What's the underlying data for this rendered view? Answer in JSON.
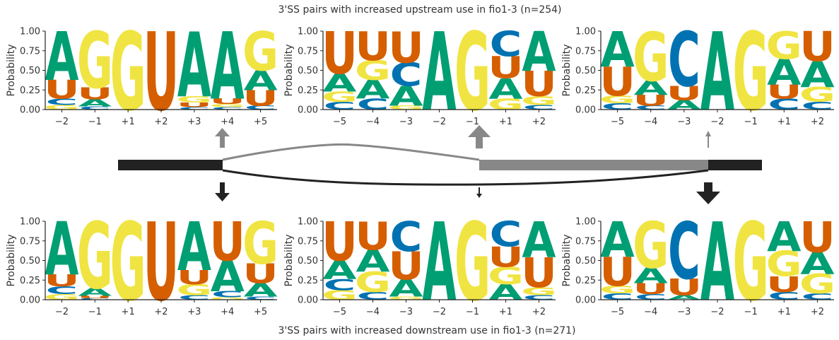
{
  "colors": {
    "A": "#009e73",
    "C": "#0072b2",
    "G": "#f0e442",
    "U": "#d55e00"
  },
  "figure": {
    "top_title": "3'SS pairs with increased upstream use in fio1-3 (n=254)",
    "bottom_title": "3'SS pairs with increased downstream use in fio1-3 (n=271)"
  },
  "chart_data": [
    {
      "type": "sequence-logo",
      "id": "top-5ss",
      "row": "upstream",
      "ylabel": "Probability",
      "ylim": [
        0,
        1
      ],
      "yticks": [
        "0.00",
        "0.25",
        "0.50",
        "0.75",
        "1.00"
      ],
      "positions": [
        "−2",
        "−1",
        "+1",
        "+2",
        "+3",
        "+4",
        "+5"
      ],
      "probabilities": [
        {
          "A": 0.62,
          "C": 0.08,
          "G": 0.06,
          "U": 0.24
        },
        {
          "A": 0.09,
          "C": 0.04,
          "G": 0.72,
          "U": 0.15
        },
        {
          "A": 0.0,
          "C": 0.0,
          "G": 1.0,
          "U": 0.0
        },
        {
          "A": 0.0,
          "C": 0.0,
          "G": 0.0,
          "U": 1.0
        },
        {
          "A": 0.83,
          "C": 0.03,
          "G": 0.08,
          "U": 0.06
        },
        {
          "A": 0.86,
          "C": 0.03,
          "G": 0.04,
          "U": 0.07
        },
        {
          "A": 0.25,
          "C": 0.05,
          "G": 0.5,
          "U": 0.2
        }
      ]
    },
    {
      "type": "sequence-logo",
      "id": "top-bp",
      "row": "upstream",
      "ylabel": "Probability",
      "ylim": [
        0,
        1
      ],
      "yticks": [
        "0.00",
        "0.25",
        "0.50",
        "0.75",
        "1.00"
      ],
      "positions": [
        "−5",
        "−4",
        "−3",
        "−2",
        "−1",
        "+1",
        "+2"
      ],
      "probabilities": [
        {
          "A": 0.23,
          "C": 0.1,
          "G": 0.13,
          "U": 0.54
        },
        {
          "A": 0.24,
          "C": 0.14,
          "G": 0.25,
          "U": 0.37
        },
        {
          "A": 0.25,
          "C": 0.3,
          "G": 0.05,
          "U": 0.4
        },
        {
          "A": 1.0,
          "C": 0.0,
          "G": 0.0,
          "U": 0.0
        },
        {
          "A": 0.0,
          "C": 0.0,
          "G": 1.0,
          "U": 0.0
        },
        {
          "A": 0.26,
          "C": 0.32,
          "G": 0.14,
          "U": 0.28
        },
        {
          "A": 0.51,
          "C": 0.06,
          "G": 0.11,
          "U": 0.32
        }
      ]
    },
    {
      "type": "sequence-logo",
      "id": "top-3ss",
      "row": "upstream",
      "ylabel": "Probability",
      "ylim": [
        0,
        1
      ],
      "yticks": [
        "0.00",
        "0.25",
        "0.50",
        "0.75",
        "1.00"
      ],
      "positions": [
        "−5",
        "−4",
        "−3",
        "−2",
        "−1",
        "+1",
        "+2"
      ],
      "probabilities": [
        {
          "A": 0.45,
          "C": 0.08,
          "G": 0.1,
          "U": 0.37
        },
        {
          "A": 0.18,
          "C": 0.05,
          "G": 0.63,
          "U": 0.14
        },
        {
          "A": 0.12,
          "C": 0.7,
          "G": 0.0,
          "U": 0.18
        },
        {
          "A": 1.0,
          "C": 0.0,
          "G": 0.0,
          "U": 0.0
        },
        {
          "A": 0.0,
          "C": 0.0,
          "G": 1.0,
          "U": 0.0
        },
        {
          "A": 0.33,
          "C": 0.14,
          "G": 0.35,
          "U": 0.18
        },
        {
          "A": 0.33,
          "C": 0.1,
          "G": 0.19,
          "U": 0.38
        }
      ]
    },
    {
      "type": "sequence-logo",
      "id": "bottom-5ss",
      "row": "downstream",
      "ylabel": "Probability",
      "ylim": [
        0,
        1
      ],
      "yticks": [
        "0.00",
        "0.25",
        "0.50",
        "0.75",
        "1.00"
      ],
      "positions": [
        "−2",
        "−1",
        "+1",
        "+2",
        "+3",
        "+4",
        "+5"
      ],
      "probabilities": [
        {
          "A": 0.68,
          "C": 0.1,
          "G": 0.07,
          "U": 0.15
        },
        {
          "A": 0.1,
          "C": 0.02,
          "G": 0.85,
          "U": 0.03
        },
        {
          "A": 0.0,
          "C": 0.0,
          "G": 1.0,
          "U": 0.0
        },
        {
          "A": 0.0,
          "C": 0.0,
          "G": 0.0,
          "U": 1.0
        },
        {
          "A": 0.62,
          "C": 0.06,
          "G": 0.14,
          "U": 0.18
        },
        {
          "A": 0.39,
          "C": 0.08,
          "G": 0.03,
          "U": 0.5
        },
        {
          "A": 0.17,
          "C": 0.04,
          "G": 0.54,
          "U": 0.25
        }
      ]
    },
    {
      "type": "sequence-logo",
      "id": "bottom-bp",
      "row": "downstream",
      "ylabel": "Probability",
      "ylim": [
        0,
        1
      ],
      "yticks": [
        "0.00",
        "0.25",
        "0.50",
        "0.75",
        "1.00"
      ],
      "positions": [
        "−5",
        "−4",
        "−3",
        "−2",
        "−1",
        "+1",
        "+2"
      ],
      "probabilities": [
        {
          "A": 0.24,
          "C": 0.14,
          "G": 0.12,
          "U": 0.5
        },
        {
          "A": 0.28,
          "C": 0.1,
          "G": 0.26,
          "U": 0.36
        },
        {
          "A": 0.22,
          "C": 0.38,
          "G": 0.04,
          "U": 0.36
        },
        {
          "A": 1.0,
          "C": 0.0,
          "G": 0.0,
          "U": 0.0
        },
        {
          "A": 0.0,
          "C": 0.0,
          "G": 1.0,
          "U": 0.0
        },
        {
          "A": 0.2,
          "C": 0.32,
          "G": 0.22,
          "U": 0.26
        },
        {
          "A": 0.46,
          "C": 0.06,
          "G": 0.1,
          "U": 0.38
        }
      ]
    },
    {
      "type": "sequence-logo",
      "id": "bottom-3ss",
      "row": "downstream",
      "ylabel": "Probability",
      "ylim": [
        0,
        1
      ],
      "yticks": [
        "0.00",
        "0.25",
        "0.50",
        "0.75",
        "1.00"
      ],
      "positions": [
        "−5",
        "−4",
        "−3",
        "−2",
        "−1",
        "+1",
        "+2"
      ],
      "probabilities": [
        {
          "A": 0.45,
          "C": 0.08,
          "G": 0.1,
          "U": 0.37
        },
        {
          "A": 0.2,
          "C": 0.07,
          "G": 0.59,
          "U": 0.14
        },
        {
          "A": 0.06,
          "C": 0.73,
          "G": 0.0,
          "U": 0.21
        },
        {
          "A": 1.0,
          "C": 0.0,
          "G": 0.0,
          "U": 0.0
        },
        {
          "A": 0.0,
          "C": 0.0,
          "G": 1.0,
          "U": 0.0
        },
        {
          "A": 0.38,
          "C": 0.1,
          "G": 0.32,
          "U": 0.2
        },
        {
          "A": 0.28,
          "C": 0.08,
          "G": 0.25,
          "U": 0.39
        }
      ]
    }
  ],
  "diagram": {
    "arrows": [
      {
        "id": "top-5ss-arrow",
        "direction": "up",
        "strength": "medium",
        "color": "#888888"
      },
      {
        "id": "top-bp-arrow",
        "direction": "up",
        "strength": "strong",
        "color": "#888888"
      },
      {
        "id": "top-3ss-arrow",
        "direction": "up",
        "strength": "weak",
        "color": "#888888"
      },
      {
        "id": "bottom-5ss-arrow",
        "direction": "down",
        "strength": "medium",
        "color": "#222222"
      },
      {
        "id": "bottom-bp-arrow",
        "direction": "down",
        "strength": "weak",
        "color": "#222222"
      },
      {
        "id": "bottom-3ss-arrow",
        "direction": "down",
        "strength": "strong",
        "color": "#222222"
      }
    ],
    "exon_color_dark": "#222222",
    "exon_color_grey": "#888888"
  }
}
